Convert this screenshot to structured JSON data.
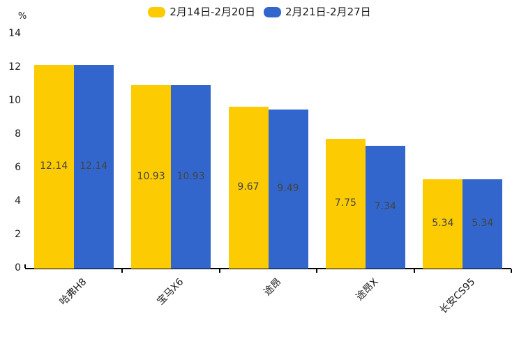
{
  "chart_data": {
    "type": "bar",
    "title": "",
    "categories": [
      "哈弗H8",
      "宝马X6",
      "途昂",
      "途昂X",
      "长安CS95"
    ],
    "series": [
      {
        "name": "2月14日-2月20日",
        "color": "#FDCB02",
        "values": [
          12.14,
          10.93,
          9.67,
          7.75,
          5.34
        ]
      },
      {
        "name": "2月21日-2月27日",
        "color": "#3366CC",
        "values": [
          12.14,
          10.93,
          9.49,
          7.34,
          5.34
        ]
      }
    ],
    "value_labels": [
      [
        "12.14",
        "10.93",
        "9.67",
        "7.75",
        "5.34"
      ],
      [
        "12.14",
        "10.93",
        "9.49",
        "7.34",
        "5.34"
      ]
    ],
    "xlabel": "",
    "ylabel": "%",
    "yticks": [
      "0",
      "2",
      "4",
      "6",
      "8",
      "10",
      "12",
      "14"
    ],
    "ytick_values": [
      0,
      2,
      4,
      6,
      8,
      10,
      12,
      14
    ],
    "ylim": [
      0,
      14
    ],
    "grid": false,
    "legend_position": "top-center",
    "value_label_position": "inside-center",
    "value_label_color": "#444444",
    "axis_color": "#000000"
  }
}
